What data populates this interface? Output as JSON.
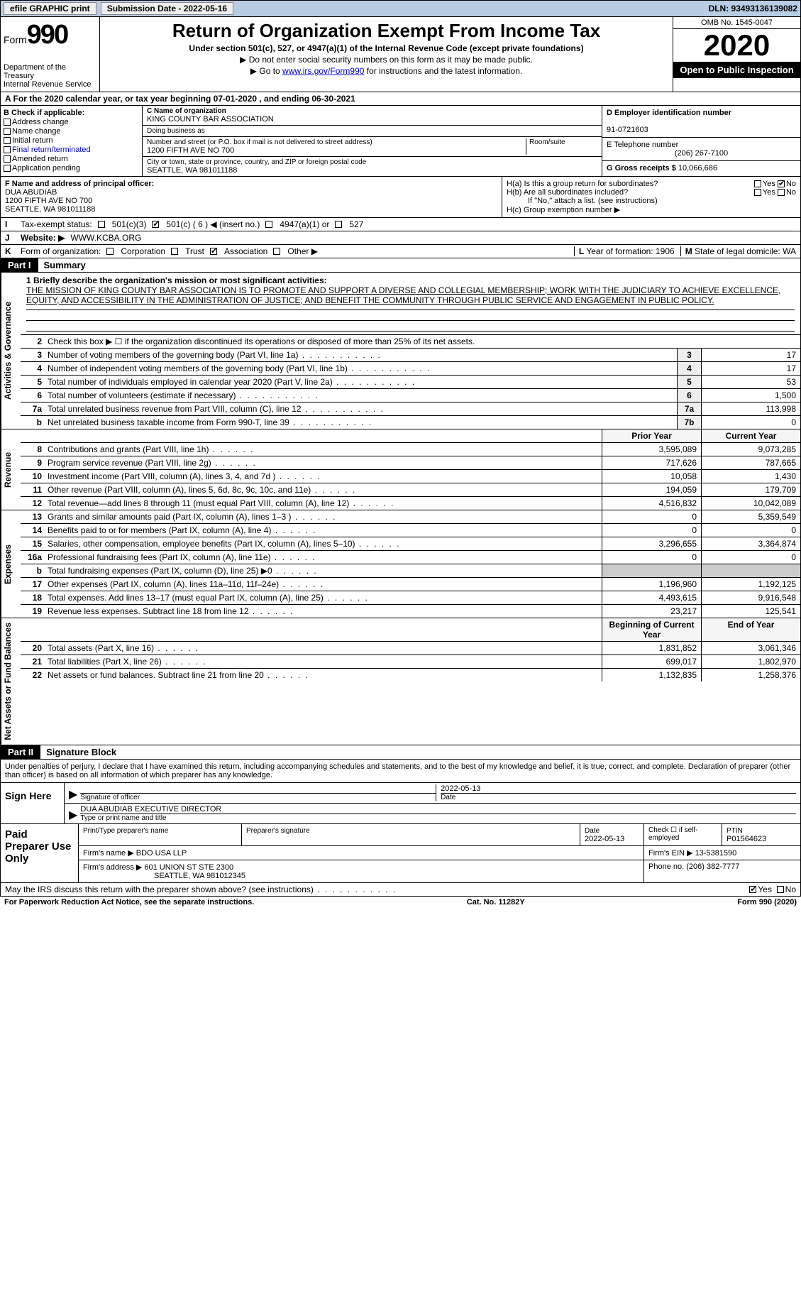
{
  "topbar": {
    "efile": "efile GRAPHIC print",
    "sub_label": "Submission Date - 2022-05-16",
    "dln": "DLN: 93493136139082"
  },
  "header": {
    "form_word": "Form",
    "form_num": "990",
    "dept": "Department of the Treasury\nInternal Revenue Service",
    "title": "Return of Organization Exempt From Income Tax",
    "subtitle": "Under section 501(c), 527, or 4947(a)(1) of the Internal Revenue Code (except private foundations)",
    "note": "▶ Do not enter social security numbers on this form as it may be made public.",
    "link_pre": "▶ Go to ",
    "link": "www.irs.gov/Form990",
    "link_post": " for instructions and the latest information.",
    "omb": "OMB No. 1545-0047",
    "year": "2020",
    "open": "Open to Public Inspection"
  },
  "period": "A For the 2020 calendar year, or tax year beginning 07-01-2020    , and ending 06-30-2021",
  "colB": {
    "title": "B Check if applicable:",
    "items": [
      "Address change",
      "Name change",
      "Initial return",
      "Final return/terminated",
      "Amended return",
      "Application pending"
    ]
  },
  "colC": {
    "name_lbl": "C Name of organization",
    "name": "KING COUNTY BAR ASSOCIATION",
    "dba_lbl": "Doing business as",
    "dba": "",
    "addr_lbl": "Number and street (or P.O. box if mail is not delivered to street address)",
    "room_lbl": "Room/suite",
    "addr": "1200 FIFTH AVE NO 700",
    "city_lbl": "City or town, state or province, country, and ZIP or foreign postal code",
    "city": "SEATTLE, WA  981011188"
  },
  "colD": {
    "ein_lbl": "D Employer identification number",
    "ein": "91-0721603",
    "tel_lbl": "E Telephone number",
    "tel": "(206) 267-7100",
    "gross_lbl": "G Gross receipts $ ",
    "gross": "10,066,686"
  },
  "f": {
    "lbl": "F Name and address of principal officer:",
    "name": "DUA ABUDIAB",
    "addr1": "1200 FIFTH AVE NO 700",
    "addr2": "SEATTLE, WA  981011188"
  },
  "h": {
    "a": "H(a)  Is this a group return for subordinates?",
    "b": "H(b)  Are all subordinates included?",
    "b_note": "If \"No,\" attach a list. (see instructions)",
    "c": "H(c)  Group exemption number ▶",
    "yes": "Yes",
    "no": "No"
  },
  "i": {
    "lbl": "I",
    "txt": "Tax-exempt status:",
    "opts": [
      "501(c)(3)",
      "501(c) ( 6 ) ◀ (insert no.)",
      "4947(a)(1) or",
      "527"
    ]
  },
  "j": {
    "lbl": "J",
    "txt": "Website: ▶",
    "val": "WWW.KCBA.ORG"
  },
  "k": {
    "lbl": "K",
    "txt": "Form of organization:",
    "opts": [
      "Corporation",
      "Trust",
      "Association",
      "Other ▶"
    ]
  },
  "l": {
    "lbl": "L",
    "txt": "Year of formation: ",
    "val": "1906"
  },
  "m": {
    "lbl": "M",
    "txt": "State of legal domicile: ",
    "val": "WA"
  },
  "parts": {
    "p1": "Part I",
    "p1t": "Summary",
    "p2": "Part II",
    "p2t": "Signature Block"
  },
  "summary": {
    "tab1": "Activities & Governance",
    "tab2": "Revenue",
    "tab3": "Expenses",
    "tab4": "Net Assets or Fund Balances",
    "mission_lbl": "1  Briefly describe the organization's mission or most significant activities:",
    "mission": "THE MISSION OF KING COUNTY BAR ASSOCIATION IS TO PROMOTE AND SUPPORT A DIVERSE AND COLLEGIAL MEMBERSHIP; WORK WITH THE JUDICIARY TO ACHIEVE EXCELLENCE, EQUITY, AND ACCESSIBILITY IN THE ADMINISTRATION OF JUSTICE; AND BENEFIT THE COMMUNITY THROUGH PUBLIC SERVICE AND ENGAGEMENT IN PUBLIC POLICY.",
    "line2": "Check this box ▶ ☐ if the organization discontinued its operations or disposed of more than 25% of its net assets.",
    "lines_gov": [
      {
        "n": "3",
        "d": "Number of voting members of the governing body (Part VI, line 1a)",
        "box": "3",
        "v": "17"
      },
      {
        "n": "4",
        "d": "Number of independent voting members of the governing body (Part VI, line 1b)",
        "box": "4",
        "v": "17"
      },
      {
        "n": "5",
        "d": "Total number of individuals employed in calendar year 2020 (Part V, line 2a)",
        "box": "5",
        "v": "53"
      },
      {
        "n": "6",
        "d": "Total number of volunteers (estimate if necessary)",
        "box": "6",
        "v": "1,500"
      },
      {
        "n": "7a",
        "d": "Total unrelated business revenue from Part VIII, column (C), line 12",
        "box": "7a",
        "v": "113,998"
      },
      {
        "n": "b",
        "d": "Net unrelated business taxable income from Form 990-T, line 39",
        "box": "7b",
        "v": "0"
      }
    ],
    "hdr_prior": "Prior Year",
    "hdr_curr": "Current Year",
    "lines_rev": [
      {
        "n": "8",
        "d": "Contributions and grants (Part VIII, line 1h)",
        "p": "3,595,089",
        "c": "9,073,285"
      },
      {
        "n": "9",
        "d": "Program service revenue (Part VIII, line 2g)",
        "p": "717,626",
        "c": "787,665"
      },
      {
        "n": "10",
        "d": "Investment income (Part VIII, column (A), lines 3, 4, and 7d )",
        "p": "10,058",
        "c": "1,430"
      },
      {
        "n": "11",
        "d": "Other revenue (Part VIII, column (A), lines 5, 6d, 8c, 9c, 10c, and 11e)",
        "p": "194,059",
        "c": "179,709"
      },
      {
        "n": "12",
        "d": "Total revenue—add lines 8 through 11 (must equal Part VIII, column (A), line 12)",
        "p": "4,516,832",
        "c": "10,042,089"
      }
    ],
    "lines_exp": [
      {
        "n": "13",
        "d": "Grants and similar amounts paid (Part IX, column (A), lines 1–3 )",
        "p": "0",
        "c": "5,359,549"
      },
      {
        "n": "14",
        "d": "Benefits paid to or for members (Part IX, column (A), line 4)",
        "p": "0",
        "c": "0"
      },
      {
        "n": "15",
        "d": "Salaries, other compensation, employee benefits (Part IX, column (A), lines 5–10)",
        "p": "3,296,655",
        "c": "3,364,874"
      },
      {
        "n": "16a",
        "d": "Professional fundraising fees (Part IX, column (A), line 11e)",
        "p": "0",
        "c": "0"
      },
      {
        "n": "b",
        "d": "Total fundraising expenses (Part IX, column (D), line 25) ▶0",
        "p": "",
        "c": "",
        "grey": true
      },
      {
        "n": "17",
        "d": "Other expenses (Part IX, column (A), lines 11a–11d, 11f–24e)",
        "p": "1,196,960",
        "c": "1,192,125"
      },
      {
        "n": "18",
        "d": "Total expenses. Add lines 13–17 (must equal Part IX, column (A), line 25)",
        "p": "4,493,615",
        "c": "9,916,548"
      },
      {
        "n": "19",
        "d": "Revenue less expenses. Subtract line 18 from line 12",
        "p": "23,217",
        "c": "125,541"
      }
    ],
    "hdr_beg": "Beginning of Current Year",
    "hdr_end": "End of Year",
    "lines_net": [
      {
        "n": "20",
        "d": "Total assets (Part X, line 16)",
        "p": "1,831,852",
        "c": "3,061,346"
      },
      {
        "n": "21",
        "d": "Total liabilities (Part X, line 26)",
        "p": "699,017",
        "c": "1,802,970"
      },
      {
        "n": "22",
        "d": "Net assets or fund balances. Subtract line 21 from line 20",
        "p": "1,132,835",
        "c": "1,258,376"
      }
    ]
  },
  "sig": {
    "intro": "Under penalties of perjury, I declare that I have examined this return, including accompanying schedules and statements, and to the best of my knowledge and belief, it is true, correct, and complete. Declaration of preparer (other than officer) is based on all information of which preparer has any knowledge.",
    "sign_here": "Sign Here",
    "sig_of": "Signature of officer",
    "date": "Date",
    "sig_date": "2022-05-13",
    "name_title": "DUA ABUDIAB  EXECUTIVE DIRECTOR",
    "type_name": "Type or print name and title",
    "paid": "Paid Preparer Use Only",
    "prep_name_lbl": "Print/Type preparer's name",
    "prep_sig_lbl": "Preparer's signature",
    "prep_date": "2022-05-13",
    "check_self": "Check ☐ if self-employed",
    "ptin_lbl": "PTIN",
    "ptin": "P01564623",
    "firm_name_lbl": "Firm's name    ▶ ",
    "firm_name": "BDO USA LLP",
    "firm_ein_lbl": "Firm's EIN ▶ ",
    "firm_ein": "13-5381590",
    "firm_addr_lbl": "Firm's address ▶ ",
    "firm_addr1": "601 UNION ST STE 2300",
    "firm_addr2": "SEATTLE, WA  981012345",
    "phone_lbl": "Phone no. ",
    "phone": "(206) 382-7777",
    "may_irs": "May the IRS discuss this return with the preparer shown above? (see instructions)",
    "paperwork": "For Paperwork Reduction Act Notice, see the separate instructions.",
    "cat": "Cat. No. 11282Y",
    "form_foot": "Form 990 (2020)"
  }
}
